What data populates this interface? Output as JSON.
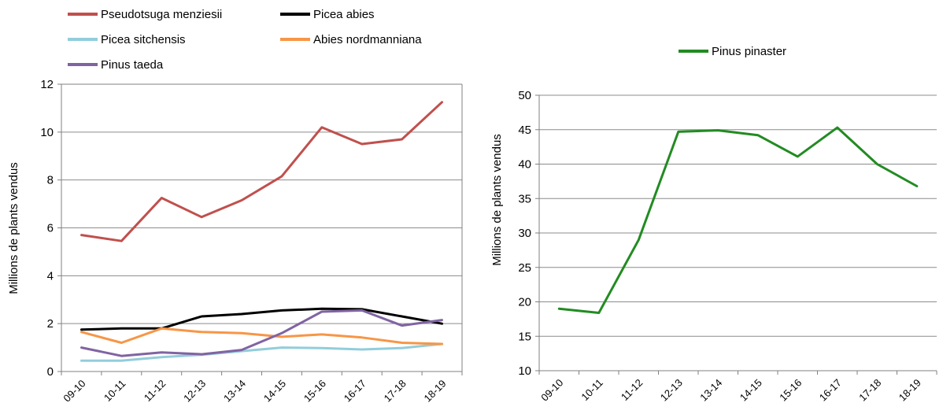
{
  "chart_data": [
    {
      "type": "line",
      "title": "",
      "xlabel": "",
      "ylabel": "Millions de plants vendus",
      "ylim": [
        0,
        12
      ],
      "yticks": [
        0,
        2,
        4,
        6,
        8,
        10,
        12
      ],
      "grid": true,
      "legend_position": "top",
      "categories": [
        "09-10",
        "10-11",
        "11-12",
        "12-13",
        "13-14",
        "14-15",
        "15-16",
        "16-17",
        "17-18",
        "18-19"
      ],
      "series": [
        {
          "name": "Pseudotsuga menziesii",
          "color": "#c0504d",
          "values": [
            5.7,
            5.45,
            7.25,
            6.45,
            7.15,
            8.15,
            10.2,
            9.5,
            9.7,
            11.25
          ]
        },
        {
          "name": "Picea abies",
          "color": "#000000",
          "values": [
            1.75,
            1.8,
            1.8,
            2.3,
            2.4,
            2.55,
            2.62,
            2.6,
            2.3,
            2.0
          ]
        },
        {
          "name": "Picea sitchensis",
          "color": "#92cddc",
          "values": [
            0.45,
            0.45,
            0.6,
            0.7,
            0.85,
            1.0,
            0.98,
            0.92,
            0.98,
            1.15
          ]
        },
        {
          "name": "Abies nordmanniana",
          "color": "#f79646",
          "values": [
            1.65,
            1.2,
            1.8,
            1.65,
            1.6,
            1.45,
            1.55,
            1.42,
            1.2,
            1.15
          ]
        },
        {
          "name": "Pinus taeda",
          "color": "#8064a2",
          "values": [
            1.0,
            0.65,
            0.8,
            0.72,
            0.9,
            1.6,
            2.5,
            2.55,
            1.92,
            2.15
          ]
        }
      ]
    },
    {
      "type": "line",
      "title": "",
      "xlabel": "",
      "ylabel": "Millions de plants vendus",
      "ylim": [
        10,
        50
      ],
      "yticks": [
        10,
        15,
        20,
        25,
        30,
        35,
        40,
        45,
        50
      ],
      "grid": true,
      "legend_position": "top",
      "categories": [
        "09-10",
        "10-11",
        "11-12",
        "12-13",
        "13-14",
        "14-15",
        "15-16",
        "16-17",
        "17-18",
        "18-19"
      ],
      "series": [
        {
          "name": "Pinus pinaster",
          "color": "#228b22",
          "values": [
            19.0,
            18.4,
            29.0,
            44.7,
            44.9,
            44.2,
            41.1,
            45.3,
            40.0,
            36.8
          ]
        }
      ]
    }
  ]
}
